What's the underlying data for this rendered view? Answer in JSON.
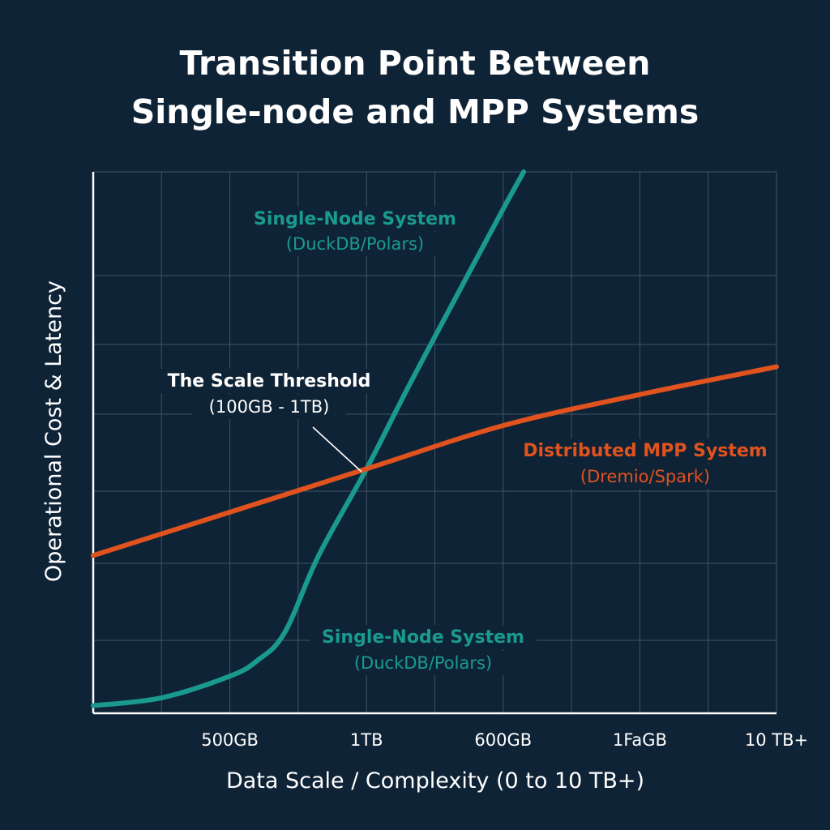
{
  "title": {
    "line1": "Transition Point Between",
    "line2": "Single-node and MPP Systems"
  },
  "colors": {
    "background": "#0f2336",
    "single_node": "#1a9a8f",
    "mpp": "#e0521e",
    "text": "#ffffff"
  },
  "chart_data": {
    "type": "line",
    "xlabel": "Data Scale / Complexity (0 to 10 TB+)",
    "ylabel": "Operational Cost & Latency",
    "x_tick_labels": [
      "500GB",
      "1TB",
      "600GB",
      "1FaGB",
      "10 TB+"
    ],
    "y_ticks_labeled": false,
    "grid": true,
    "series": [
      {
        "name": "Single-Node System",
        "subtitle": "(DuckDB/Polars)",
        "x": [
          0,
          1,
          2,
          2.4,
          2.8,
          3.3,
          4.0,
          4.6,
          5.2,
          6.0,
          6.3
        ],
        "y": [
          0.25,
          0.5,
          1.2,
          1.7,
          2.6,
          5.1,
          7.9,
          10.5,
          13.0,
          16.3,
          17.5
        ]
      },
      {
        "name": "Distributed MPP System",
        "subtitle": "(Dremio/Spark)",
        "x": [
          0,
          2,
          4,
          6,
          8,
          10
        ],
        "y": [
          5.1,
          6.5,
          7.9,
          9.3,
          10.3,
          11.2
        ]
      }
    ],
    "annotations": [
      {
        "title": "The Scale Threshold",
        "subtitle": "(100GB - 1TB)"
      }
    ]
  }
}
